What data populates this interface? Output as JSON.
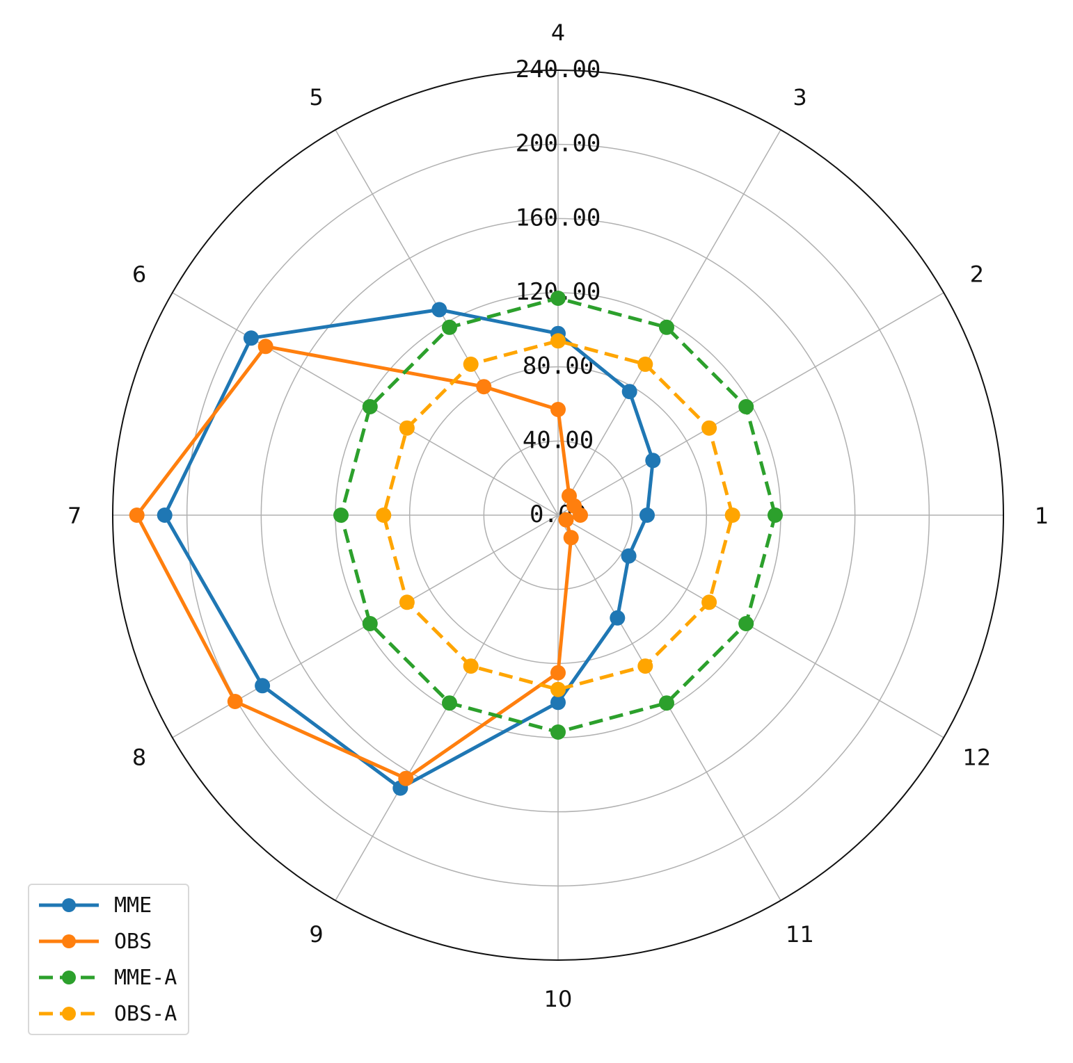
{
  "chart_data": {
    "type": "radar",
    "categories": [
      "1",
      "2",
      "3",
      "4",
      "5",
      "6",
      "7",
      "8",
      "9",
      "10",
      "11",
      "12"
    ],
    "r_ticks": [
      "0.00",
      "40.00",
      "80.00",
      "120.00",
      "160.00",
      "200.00",
      "240.00"
    ],
    "r_range": [
      0,
      240
    ],
    "grid": true,
    "legend_position": "bottom-left",
    "series": [
      {
        "name": "MME",
        "color": "#1f77b4",
        "style": "solid",
        "values": [
          48,
          59,
          77,
          98,
          128,
          191,
          212,
          184,
          170,
          101,
          64,
          44
        ]
      },
      {
        "name": "OBS",
        "color": "#ff7f0e",
        "style": "solid",
        "values": [
          12,
          10,
          12,
          57,
          80,
          182,
          227,
          201,
          164,
          85,
          14,
          5
        ]
      },
      {
        "name": "MME-A",
        "color": "#2ca02c",
        "style": "dashed",
        "values": [
          117,
          117,
          117,
          117,
          117,
          117,
          117,
          117,
          117,
          117,
          117,
          117
        ]
      },
      {
        "name": "OBS-A",
        "color": "#ffa500",
        "style": "dashed",
        "values": [
          94,
          94,
          94,
          94,
          94,
          94,
          94,
          94,
          94,
          94,
          94,
          94
        ]
      }
    ]
  }
}
